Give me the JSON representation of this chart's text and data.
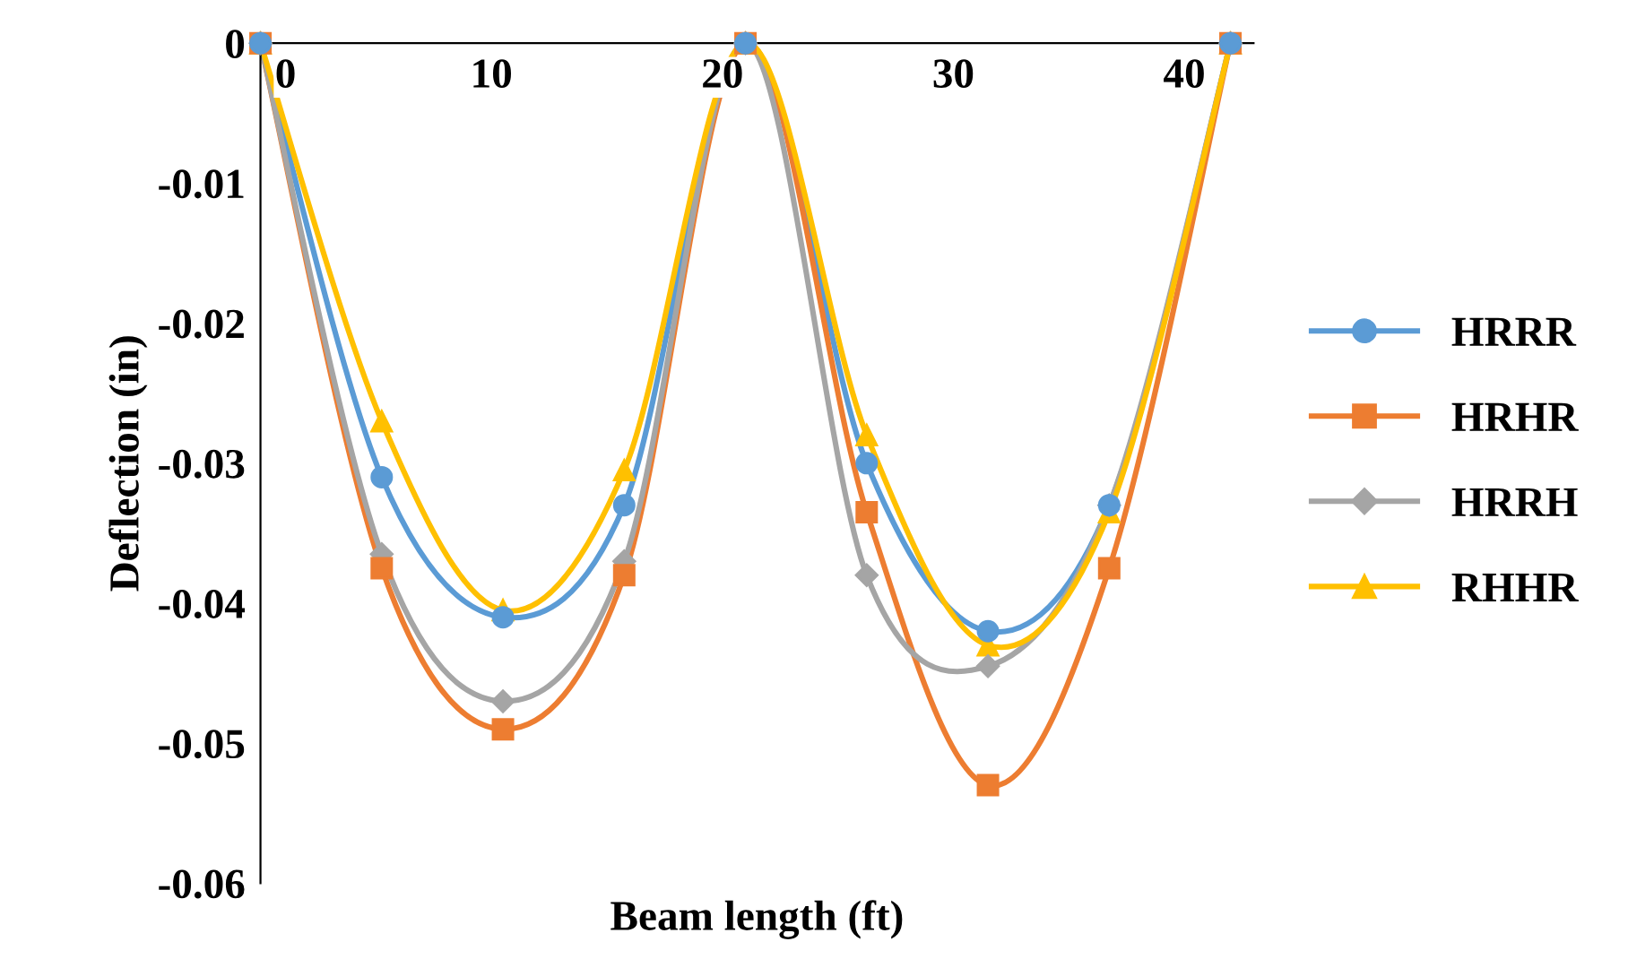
{
  "chart_data": {
    "type": "line",
    "xlabel": "Beam length (ft)",
    "ylabel": "Deflection (in)",
    "x": [
      0,
      5.25,
      10.5,
      15.75,
      21,
      26.25,
      31.5,
      36.75,
      42
    ],
    "xlim": [
      0,
      43
    ],
    "xticks": [
      0,
      10,
      20,
      30,
      40
    ],
    "ylim": [
      -0.06,
      0
    ],
    "yticks": [
      0,
      -0.01,
      -0.02,
      -0.03,
      -0.04,
      -0.05,
      -0.06
    ],
    "grid": false,
    "legend": "right",
    "line_style": "solid",
    "series": [
      {
        "name": "HRRR",
        "color": "#5b9bd5",
        "marker": "circle",
        "values": [
          0,
          -0.031,
          -0.041,
          -0.033,
          0,
          -0.03,
          -0.042,
          -0.033,
          0
        ]
      },
      {
        "name": "HRHR",
        "color": "#ed7d31",
        "marker": "square",
        "values": [
          0,
          -0.0375,
          -0.049,
          -0.038,
          0,
          -0.0335,
          -0.053,
          -0.0375,
          0
        ]
      },
      {
        "name": "HRRH",
        "color": "#a5a5a5",
        "marker": "diamond",
        "values": [
          0,
          -0.0365,
          -0.047,
          -0.037,
          0,
          -0.038,
          -0.0445,
          -0.033,
          0
        ]
      },
      {
        "name": "RHHR",
        "color": "#ffc000",
        "marker": "triangle",
        "values": [
          0,
          -0.027,
          -0.0405,
          -0.0305,
          0,
          -0.028,
          -0.043,
          -0.0335,
          0
        ]
      }
    ]
  }
}
